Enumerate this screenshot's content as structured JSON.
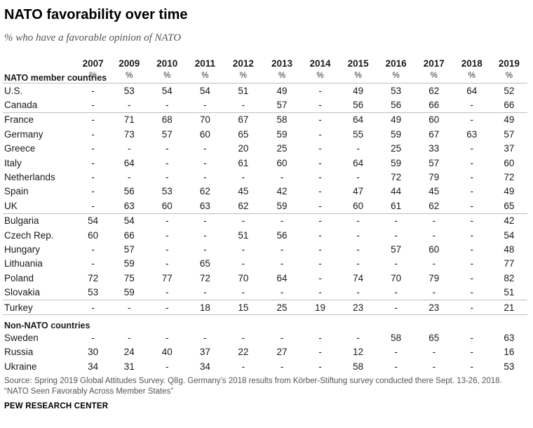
{
  "title": "NATO favorability over time",
  "subtitle": "% who have a favorable opinion of NATO",
  "header_group": "NATO member countries",
  "unit_symbol": "%",
  "section_non_nato": "Non-NATO countries",
  "source_line1": "Source: Spring 2019 Global Attitudes Survey. Q8g. Germany’s 2018 results from Körber-Stiftung survey conducted there Sept. 13-26, 2018.",
  "source_line2": "“NATO Seen Favorably Across Member States”",
  "org": "PEW RESEARCH CENTER",
  "chart_data": {
    "type": "table",
    "columns": [
      "2007",
      "2009",
      "2010",
      "2011",
      "2012",
      "2013",
      "2014",
      "2015",
      "2016",
      "2017",
      "2018",
      "2019"
    ],
    "groups": [
      {
        "name": "NATO member countries",
        "rows": [
          {
            "country": "U.S.",
            "values": [
              "-",
              "53",
              "54",
              "54",
              "51",
              "49",
              "-",
              "49",
              "53",
              "62",
              "64",
              "52"
            ]
          },
          {
            "country": "Canada",
            "values": [
              "-",
              "-",
              "-",
              "-",
              "-",
              "57",
              "-",
              "56",
              "56",
              "66",
              "-",
              "66"
            ]
          },
          {
            "country": "France",
            "values": [
              "-",
              "71",
              "68",
              "70",
              "67",
              "58",
              "-",
              "64",
              "49",
              "60",
              "-",
              "49"
            ]
          },
          {
            "country": "Germany",
            "values": [
              "-",
              "73",
              "57",
              "60",
              "65",
              "59",
              "-",
              "55",
              "59",
              "67",
              "63",
              "57"
            ]
          },
          {
            "country": "Greece",
            "values": [
              "-",
              "-",
              "-",
              "-",
              "20",
              "25",
              "-",
              "-",
              "25",
              "33",
              "-",
              "37"
            ]
          },
          {
            "country": "Italy",
            "values": [
              "-",
              "64",
              "-",
              "-",
              "61",
              "60",
              "-",
              "64",
              "59",
              "57",
              "-",
              "60"
            ]
          },
          {
            "country": "Netherlands",
            "values": [
              "-",
              "-",
              "-",
              "-",
              "-",
              "-",
              "-",
              "-",
              "72",
              "79",
              "-",
              "72"
            ]
          },
          {
            "country": "Spain",
            "values": [
              "-",
              "56",
              "53",
              "62",
              "45",
              "42",
              "-",
              "47",
              "44",
              "45",
              "-",
              "49"
            ]
          },
          {
            "country": "UK",
            "values": [
              "-",
              "63",
              "60",
              "63",
              "62",
              "59",
              "-",
              "60",
              "61",
              "62",
              "-",
              "65"
            ]
          },
          {
            "country": "Bulgaria",
            "values": [
              "54",
              "54",
              "-",
              "-",
              "-",
              "-",
              "-",
              "-",
              "-",
              "-",
              "-",
              "42"
            ]
          },
          {
            "country": "Czech Rep.",
            "values": [
              "60",
              "66",
              "-",
              "-",
              "51",
              "56",
              "-",
              "-",
              "-",
              "-",
              "-",
              "54"
            ]
          },
          {
            "country": "Hungary",
            "values": [
              "-",
              "57",
              "-",
              "-",
              "-",
              "-",
              "-",
              "-",
              "57",
              "60",
              "-",
              "48"
            ]
          },
          {
            "country": "Lithuania",
            "values": [
              "-",
              "59",
              "-",
              "65",
              "-",
              "-",
              "-",
              "-",
              "-",
              "-",
              "-",
              "77"
            ]
          },
          {
            "country": "Poland",
            "values": [
              "72",
              "75",
              "77",
              "72",
              "70",
              "64",
              "-",
              "74",
              "70",
              "79",
              "-",
              "82"
            ]
          },
          {
            "country": "Slovakia",
            "values": [
              "53",
              "59",
              "-",
              "-",
              "-",
              "-",
              "-",
              "-",
              "-",
              "-",
              "-",
              "51"
            ]
          },
          {
            "country": "Turkey",
            "values": [
              "-",
              "-",
              "-",
              "18",
              "15",
              "25",
              "19",
              "23",
              "-",
              "23",
              "-",
              "21"
            ]
          }
        ]
      },
      {
        "name": "Non-NATO countries",
        "rows": [
          {
            "country": "Sweden",
            "values": [
              "-",
              "-",
              "-",
              "-",
              "-",
              "-",
              "-",
              "-",
              "58",
              "65",
              "-",
              "63"
            ]
          },
          {
            "country": "Russia",
            "values": [
              "30",
              "24",
              "40",
              "37",
              "22",
              "27",
              "-",
              "12",
              "-",
              "-",
              "-",
              "16"
            ]
          },
          {
            "country": "Ukraine",
            "values": [
              "34",
              "31",
              "-",
              "34",
              "-",
              "-",
              "-",
              "58",
              "-",
              "-",
              "-",
              "53"
            ]
          }
        ]
      }
    ]
  }
}
